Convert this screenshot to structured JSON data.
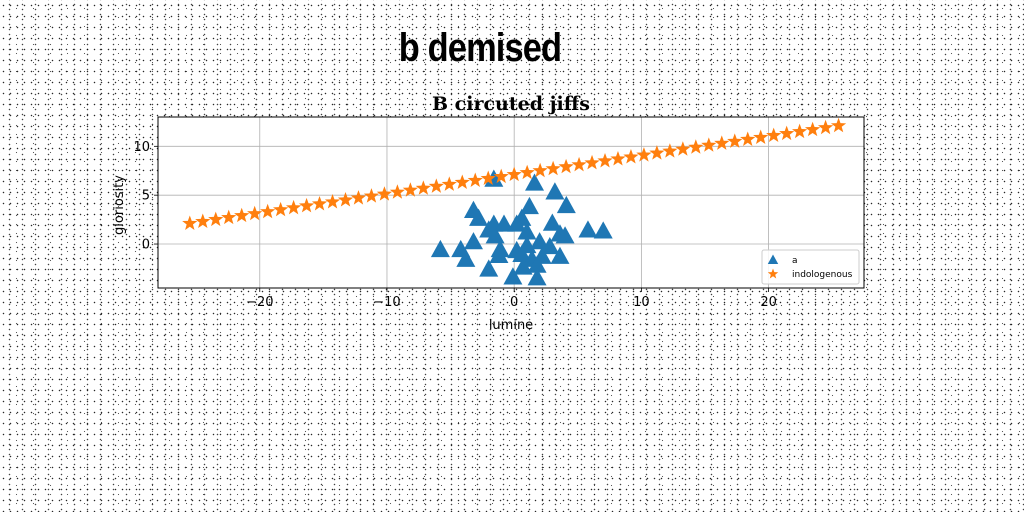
{
  "figure": {
    "suptitle": "b demised"
  },
  "chart_data": {
    "type": "scatter",
    "title": "B circuted jiffs",
    "xlabel": "lumine",
    "ylabel": "gloriosity",
    "xlim": [
      -28,
      27.5
    ],
    "ylim": [
      -4.5,
      13
    ],
    "xticks": [
      -20,
      -10,
      0,
      10,
      20
    ],
    "xtick_labels": [
      "−20",
      "−10",
      "0",
      "10",
      "20"
    ],
    "yticks": [
      0,
      5,
      10
    ],
    "ytick_labels": [
      "0",
      "5",
      "10"
    ],
    "grid": true,
    "legend_position": "lower right",
    "series": [
      {
        "name": "a",
        "marker": "triangle",
        "color": "#1f77b4",
        "points": [
          [
            -1.6,
            6.6
          ],
          [
            1.6,
            6.2
          ],
          [
            3.2,
            5.3
          ],
          [
            -3.2,
            3.4
          ],
          [
            1.2,
            3.8
          ],
          [
            4.1,
            3.9
          ],
          [
            -2.8,
            2.6
          ],
          [
            0.6,
            2.6
          ],
          [
            3.0,
            2.1
          ],
          [
            -2.0,
            1.4
          ],
          [
            -1.6,
            2.0
          ],
          [
            -0.8,
            2.0
          ],
          [
            0.2,
            2.0
          ],
          [
            1.0,
            1.2
          ],
          [
            3.6,
            1.0
          ],
          [
            4.0,
            0.8
          ],
          [
            5.8,
            1.4
          ],
          [
            7.0,
            1.3
          ],
          [
            -3.2,
            0.2
          ],
          [
            -1.5,
            0.8
          ],
          [
            -1.1,
            -0.6
          ],
          [
            0.2,
            -0.7
          ],
          [
            1.0,
            -0.2
          ],
          [
            2.0,
            0.2
          ],
          [
            2.8,
            -0.3
          ],
          [
            -5.8,
            -0.6
          ],
          [
            -4.2,
            -0.6
          ],
          [
            -3.8,
            -1.6
          ],
          [
            -1.2,
            -1.2
          ],
          [
            0.6,
            -1.1
          ],
          [
            1.4,
            -1.6
          ],
          [
            2.2,
            -1.3
          ],
          [
            3.6,
            -1.3
          ],
          [
            -2.0,
            -2.6
          ],
          [
            0.7,
            -2.4
          ],
          [
            1.8,
            -2.2
          ],
          [
            -0.1,
            -3.4
          ],
          [
            1.8,
            -3.5
          ]
        ]
      },
      {
        "name": "indologenous",
        "marker": "star",
        "color": "#ff7f0e",
        "start": [
          -25.5,
          2.1
        ],
        "end": [
          25.5,
          12.1
        ],
        "count": 51
      }
    ]
  }
}
